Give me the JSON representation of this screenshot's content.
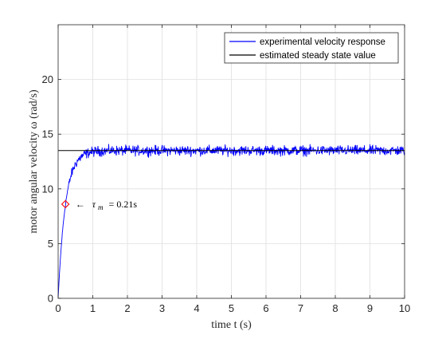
{
  "chart_data": {
    "type": "line",
    "title": "",
    "xlabel": "time t (s)",
    "ylabel": "motor angular velocity ω (rad/s)",
    "xlim": [
      0,
      10
    ],
    "ylim": [
      0,
      25
    ],
    "xticks": [
      0,
      1,
      2,
      3,
      4,
      5,
      6,
      7,
      8,
      9,
      10
    ],
    "yticks": [
      0,
      5,
      10,
      15,
      20
    ],
    "grid": true,
    "legend_position": "top-right",
    "series": [
      {
        "name": "experimental velocity response",
        "color": "#0000ff",
        "kind": "noisy first-order step response",
        "steady_state": 13.5,
        "time_constant": 0.21,
        "noise_amplitude": 0.35,
        "x_start": 0,
        "x_end": 10,
        "samples": 1000
      },
      {
        "name": "estimated steady state value",
        "color": "#000000",
        "kind": "constant",
        "x": [
          0,
          10
        ],
        "y": [
          13.5,
          13.5
        ]
      }
    ],
    "marker": {
      "x": 0.21,
      "y": 8.6,
      "shape": "diamond",
      "color": "#ff0000"
    },
    "annotation": {
      "x": 0.5,
      "y": 8.6,
      "arrow": "←",
      "text": "τ",
      "subscript": "m",
      "value": "= 0.21s"
    }
  }
}
